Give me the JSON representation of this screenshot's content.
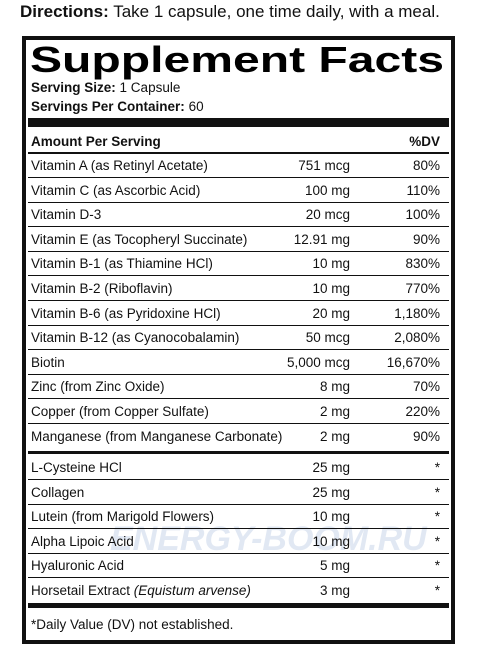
{
  "directions": {
    "label": "Directions:",
    "text": "Take 1 capsule, one time daily, with a meal."
  },
  "title": "Supplement Facts",
  "serving_size": {
    "label": "Serving Size:",
    "value": "1 Capsule"
  },
  "servings_per_container": {
    "label": "Servings Per Container:",
    "value": "60"
  },
  "header": {
    "amount": "Amount Per Serving",
    "dv": "%DV"
  },
  "rows": [
    {
      "name": "Vitamin A (as Retinyl Acetate)",
      "amount": "751 mcg",
      "dv": "80%"
    },
    {
      "name": "Vitamin C (as Ascorbic Acid)",
      "amount": "100 mg",
      "dv": "110%"
    },
    {
      "name": "Vitamin D-3",
      "amount": "20 mcg",
      "dv": "100%"
    },
    {
      "name": "Vitamin E (as Tocopheryl Succinate)",
      "amount": "12.91 mg",
      "dv": "90%"
    },
    {
      "name": "Vitamin B-1 (as Thiamine HCl)",
      "amount": "10 mg",
      "dv": "830%"
    },
    {
      "name": "Vitamin B-2 (Riboflavin)",
      "amount": "10 mg",
      "dv": "770%"
    },
    {
      "name": "Vitamin B-6 (as Pyridoxine HCl)",
      "amount": "20 mg",
      "dv": "1,180%"
    },
    {
      "name": "Vitamin B-12 (as Cyanocobalamin)",
      "amount": "50 mcg",
      "dv": "2,080%"
    },
    {
      "name": "Biotin",
      "amount": "5,000 mcg",
      "dv": "16,670%"
    },
    {
      "name": "Zinc (from Zinc Oxide)",
      "amount": "8 mg",
      "dv": "70%"
    },
    {
      "name": "Copper (from Copper Sulfate)",
      "amount": "2 mg",
      "dv": "220%"
    },
    {
      "name": "Manganese (from Manganese Carbonate)",
      "amount": "2 mg",
      "dv": "90%"
    }
  ],
  "other_rows": [
    {
      "name": "L-Cysteine HCl",
      "amount": "25 mg",
      "dv": "*"
    },
    {
      "name": "Collagen",
      "amount": "25 mg",
      "dv": "*"
    },
    {
      "name": "Lutein (from Marigold Flowers)",
      "amount": "10 mg",
      "dv": "*"
    },
    {
      "name": "Alpha Lipoic Acid",
      "amount": "10 mg",
      "dv": "*"
    },
    {
      "name": "Hyaluronic Acid",
      "amount": "5 mg",
      "dv": "*"
    },
    {
      "name": "Horsetail Extract",
      "name_italic": "(Equistum arvense)",
      "amount": "3 mg",
      "dv": "*"
    }
  ],
  "footnote": "*Daily Value (DV) not established.",
  "watermark": "ENERGY-BOOM.RU"
}
